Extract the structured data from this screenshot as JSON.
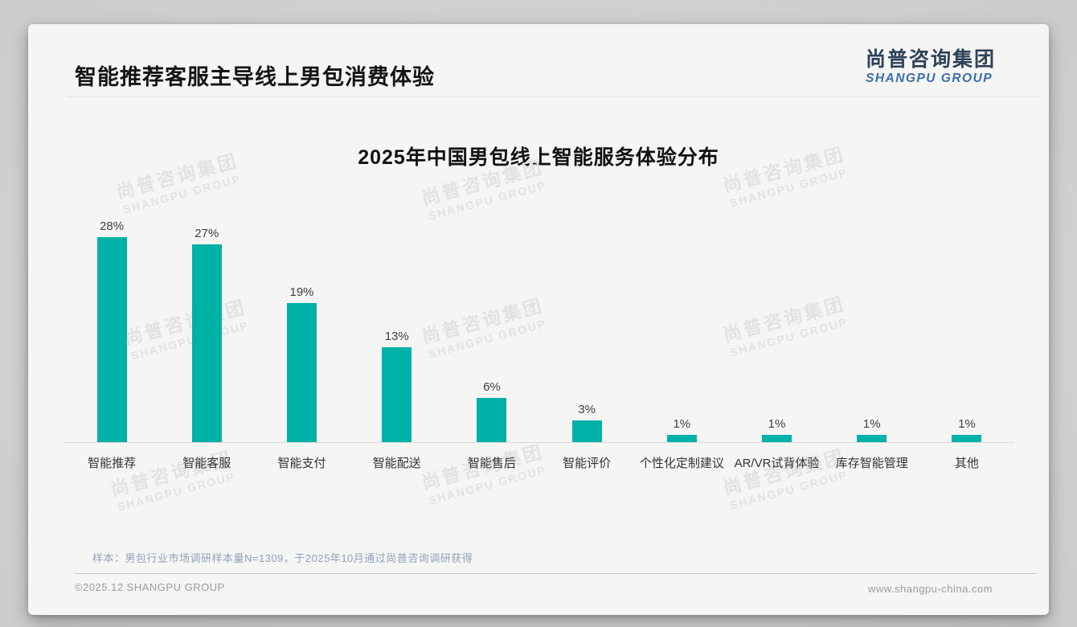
{
  "page": {
    "header_title": "智能推荐客服主导线上男包消费体验",
    "logo": {
      "cn": "尚普咨询集团",
      "en": "SHANGPU GROUP"
    },
    "watermark": {
      "line1": "尚普咨询集团",
      "line2": "SHANGPU GROUP"
    },
    "footnote": "样本：男包行业市场调研样本量N=1309，于2025年10月通过尚普咨询调研获得",
    "footer_left": "©2025.12 SHANGPU GROUP",
    "footer_right": "www.shangpu-china.com"
  },
  "colors": {
    "bar": "#00b1a8",
    "logo_cn": "#2e4257",
    "logo_en": "#3a6dad",
    "axis": "#d8d8d8",
    "footnote": "#90a2ba"
  },
  "chart_data": {
    "type": "bar",
    "title": "2025年中国男包线上智能服务体验分布",
    "categories": [
      "智能推荐",
      "智能客服",
      "智能支付",
      "智能配送",
      "智能售后",
      "智能评价",
      "个性化定制建议",
      "AR/VR试背体验",
      "库存智能管理",
      "其他"
    ],
    "values": [
      28,
      27,
      19,
      13,
      6,
      3,
      1,
      1,
      1,
      1
    ],
    "value_labels": [
      "28%",
      "27%",
      "19%",
      "13%",
      "6%",
      "3%",
      "1%",
      "1%",
      "1%",
      "1%"
    ],
    "unit": "%",
    "xlabel": "",
    "ylabel": "",
    "ylim": [
      0,
      30
    ],
    "grid": false,
    "legend": false,
    "bar_color": "#00b1a8"
  }
}
